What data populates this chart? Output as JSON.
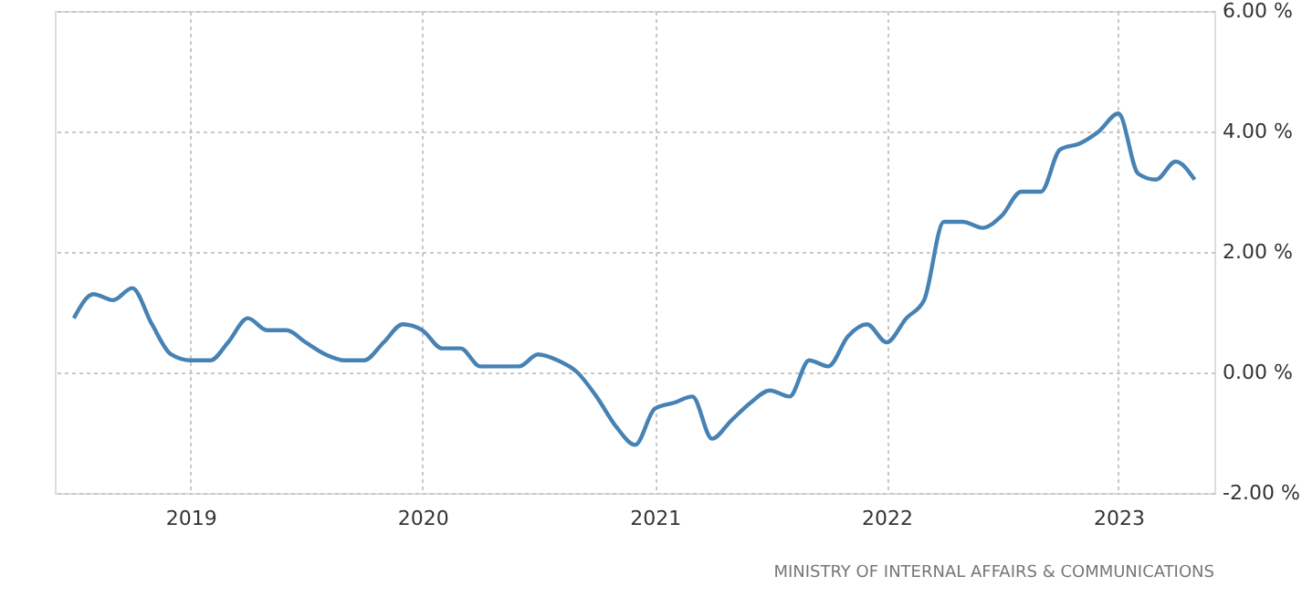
{
  "chart_data": {
    "type": "line",
    "x": [
      "2018-07",
      "2018-08",
      "2018-09",
      "2018-10",
      "2018-11",
      "2018-12",
      "2019-01",
      "2019-02",
      "2019-03",
      "2019-04",
      "2019-05",
      "2019-06",
      "2019-07",
      "2019-08",
      "2019-09",
      "2019-10",
      "2019-11",
      "2019-12",
      "2020-01",
      "2020-02",
      "2020-03",
      "2020-04",
      "2020-05",
      "2020-06",
      "2020-07",
      "2020-08",
      "2020-09",
      "2020-10",
      "2020-11",
      "2020-12",
      "2021-01",
      "2021-02",
      "2021-03",
      "2021-04",
      "2021-05",
      "2021-06",
      "2021-07",
      "2021-08",
      "2021-09",
      "2021-10",
      "2021-11",
      "2021-12",
      "2022-01",
      "2022-02",
      "2022-03",
      "2022-04",
      "2022-05",
      "2022-06",
      "2022-07",
      "2022-08",
      "2022-09",
      "2022-10",
      "2022-11",
      "2022-12",
      "2023-01",
      "2023-02",
      "2023-03",
      "2023-04",
      "2023-05"
    ],
    "series": [
      {
        "color": "#4682b4",
        "values": [
          0.9,
          1.3,
          1.2,
          1.4,
          0.8,
          0.3,
          0.2,
          0.2,
          0.5,
          0.9,
          0.7,
          0.7,
          0.5,
          0.3,
          0.2,
          0.2,
          0.5,
          0.8,
          0.7,
          0.4,
          0.4,
          0.1,
          0.1,
          0.1,
          0.3,
          0.2,
          0.0,
          -0.4,
          -0.9,
          -1.2,
          -0.6,
          -0.5,
          -0.4,
          -1.1,
          -0.8,
          -0.5,
          -0.3,
          -0.4,
          0.2,
          0.1,
          0.6,
          0.8,
          0.5,
          0.9,
          1.2,
          2.5,
          2.5,
          2.4,
          2.6,
          3.0,
          3.0,
          3.7,
          3.8,
          4.0,
          4.3,
          3.3,
          3.2,
          3.5,
          3.2
        ]
      }
    ],
    "xlim": [
      "2018-06",
      "2023-06"
    ],
    "xticks": [
      "2019",
      "2020",
      "2021",
      "2022",
      "2023"
    ],
    "ylim": [
      -2,
      6
    ],
    "yticks": [
      {
        "value": -2,
        "label": "-2.00 %"
      },
      {
        "value": 0,
        "label": "0.00 %"
      },
      {
        "value": 2,
        "label": "2.00 %"
      },
      {
        "value": 4,
        "label": "4.00 %"
      },
      {
        "value": 6,
        "label": "6.00 %"
      }
    ],
    "grid": true,
    "marker": "none",
    "line_style": "solid",
    "annotations": [
      "MINISTRY OF INTERNAL AFFAIRS & COMMUNICATIONS"
    ]
  }
}
